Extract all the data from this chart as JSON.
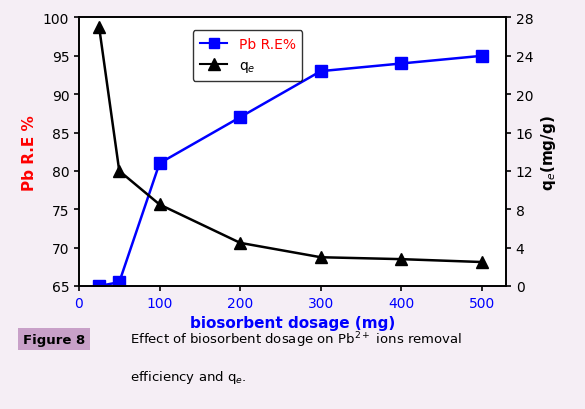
{
  "x": [
    25,
    50,
    100,
    200,
    300,
    400,
    500
  ],
  "pb_re": [
    65.0,
    65.5,
    81.0,
    87.0,
    93.0,
    94.0,
    95.0
  ],
  "qe": [
    27.0,
    12.0,
    8.5,
    4.5,
    3.0,
    2.8,
    2.5
  ],
  "pb_color": "blue",
  "qe_color": "black",
  "xlabel": "biosorbent dosage (mg)",
  "ylabel_left": "Pb R.E %",
  "ylabel_right": "q$_e$(mg/g)",
  "legend_pb": "Pb R.E%",
  "legend_qe": "q$_e$",
  "ylim_left": [
    65,
    100
  ],
  "ylim_right": [
    0,
    28
  ],
  "yticks_left": [
    65,
    70,
    75,
    80,
    85,
    90,
    95,
    100
  ],
  "yticks_right": [
    0,
    4,
    8,
    12,
    16,
    20,
    24,
    28
  ],
  "xticks": [
    0,
    100,
    200,
    300,
    400,
    500
  ],
  "xlim": [
    0,
    530
  ],
  "figure_label": "Figure 8",
  "bg_color": "#ffffff",
  "outer_bg": "#f5eef5",
  "border_color": "#c090c0",
  "fig_label_bg": "#c8a0c8"
}
